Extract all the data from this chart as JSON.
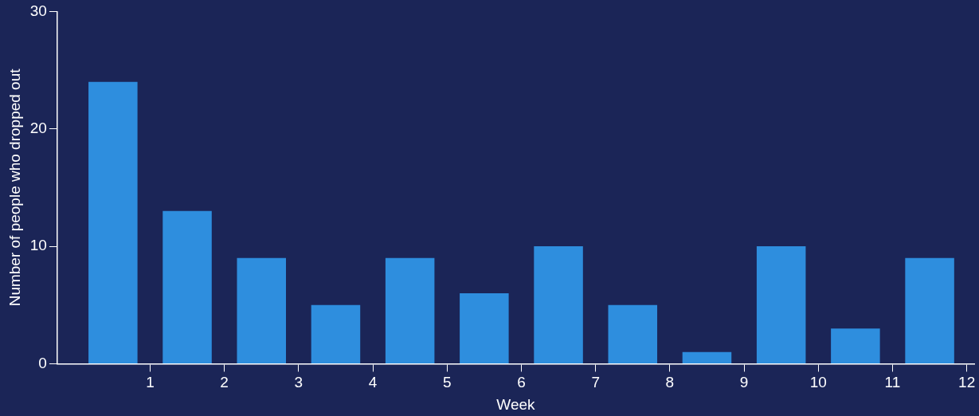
{
  "chart_data": {
    "type": "histogram",
    "xlabel": "Week",
    "ylabel": "Number of people who dropped out",
    "bins": [
      0,
      1,
      2,
      3,
      4,
      5,
      6,
      7,
      8,
      9,
      10,
      11,
      12
    ],
    "values": [
      24,
      13,
      9,
      5,
      9,
      6,
      10,
      5,
      1,
      10,
      3,
      9
    ],
    "color": "#2e8ede",
    "xlim": [
      -0.25,
      12.1
    ],
    "xticks": [
      1,
      2,
      3,
      4,
      5,
      6,
      7,
      8,
      9,
      10,
      11,
      12
    ],
    "ylim": [
      0,
      30
    ],
    "yticks": [
      0,
      10,
      20,
      30
    ],
    "grid": false
  }
}
